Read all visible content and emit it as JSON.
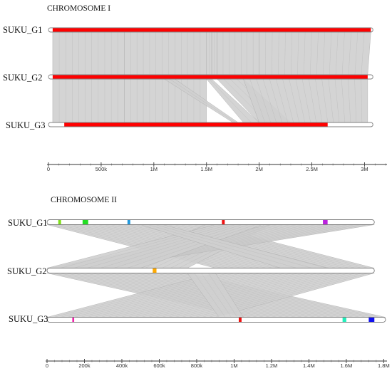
{
  "panels": [
    {
      "title": "CHROMOSOME I",
      "genomes": [
        {
          "label": "SUKU_G1",
          "length": 3.08,
          "regions": [
            {
              "start": 0.04,
              "end": 3.06,
              "color": "#ff0000"
            }
          ]
        },
        {
          "label": "SUKU_G2",
          "length": 3.08,
          "regions": [
            {
              "start": 0.04,
              "end": 3.03,
              "color": "#ff0000"
            }
          ]
        },
        {
          "label": "SUKU_G3",
          "length": 3.08,
          "regions": [
            {
              "start": 0.15,
              "end": 2.65,
              "color": "#ff0000"
            }
          ]
        }
      ],
      "links": [
        [
          [
            0.04,
            0.72,
            0.04,
            0.72
          ],
          [
            0.72,
            1.5,
            0.72,
            1.5
          ],
          [
            1.5,
            1.55,
            1.5,
            1.55
          ],
          [
            1.55,
            1.6,
            1.55,
            1.6
          ],
          [
            1.6,
            2.0,
            1.6,
            2.0
          ],
          [
            2.0,
            3.06,
            2.0,
            3.03
          ]
        ],
        [
          [
            0.04,
            0.72,
            0.04,
            0.72
          ],
          [
            0.72,
            1.5,
            0.72,
            1.5
          ],
          [
            1.5,
            1.55,
            1.85,
            2.0
          ],
          [
            1.6,
            1.85,
            2.0,
            2.3
          ],
          [
            1.85,
            3.03,
            2.0,
            3.03
          ],
          [
            1.1,
            1.2,
            1.75,
            1.8
          ]
        ]
      ],
      "axis": {
        "max": 3.2,
        "ticks": [
          {
            "value": 0,
            "label": "0"
          },
          {
            "value": 0.5,
            "label": "500k"
          },
          {
            "value": 1.0,
            "label": "1M"
          },
          {
            "value": 1.5,
            "label": "1.5M"
          },
          {
            "value": 2.0,
            "label": "2M"
          },
          {
            "value": 2.5,
            "label": "2.5M"
          },
          {
            "value": 3.0,
            "label": "3M"
          }
        ]
      }
    },
    {
      "title": "CHROMOSOME II",
      "genomes": [
        {
          "label": "SUKU_G1",
          "length": 1.75,
          "regions": [
            {
              "start": 0.06,
              "end": 0.075,
              "color": "#7fe01a"
            },
            {
              "start": 0.19,
              "end": 0.22,
              "color": "#22dd22"
            },
            {
              "start": 0.43,
              "end": 0.445,
              "color": "#2299dd"
            },
            {
              "start": 0.935,
              "end": 0.95,
              "color": "#ee1111"
            },
            {
              "start": 1.475,
              "end": 1.5,
              "color": "#bb22dd"
            }
          ]
        },
        {
          "label": "SUKU_G2",
          "length": 1.75,
          "regions": [
            {
              "start": 0.565,
              "end": 0.585,
              "color": "#ffaa00"
            }
          ]
        },
        {
          "label": "SUKU_G3",
          "length": 1.81,
          "regions": [
            {
              "start": 0.135,
              "end": 0.145,
              "color": "#ee22aa"
            },
            {
              "start": 1.025,
              "end": 1.04,
              "color": "#ee1111"
            },
            {
              "start": 1.58,
              "end": 1.6,
              "color": "#22eebb"
            },
            {
              "start": 1.72,
              "end": 1.75,
              "color": "#1111ee"
            }
          ]
        }
      ],
      "links": [
        [
          [
            0.0,
            0.85,
            0.9,
            1.75
          ],
          [
            0.85,
            1.2,
            0.3,
            0.75
          ],
          [
            1.2,
            1.75,
            0.0,
            0.3
          ],
          [
            0.9,
            1.15,
            0.0,
            0.5
          ],
          [
            0.5,
            0.62,
            1.25,
            1.5
          ]
        ],
        [
          [
            0.0,
            0.75,
            1.06,
            1.81
          ],
          [
            0.9,
            1.75,
            0.0,
            0.9
          ],
          [
            0.75,
            0.9,
            0.92,
            1.05
          ]
        ]
      ],
      "axis": {
        "max": 1.81,
        "ticks": [
          {
            "value": 0,
            "label": "0"
          },
          {
            "value": 0.2,
            "label": "200k"
          },
          {
            "value": 0.4,
            "label": "400k"
          },
          {
            "value": 0.6,
            "label": "600k"
          },
          {
            "value": 0.8,
            "label": "800k"
          },
          {
            "value": 1.0,
            "label": "1M"
          },
          {
            "value": 1.2,
            "label": "1.2M"
          },
          {
            "value": 1.4,
            "label": "1.4M"
          },
          {
            "value": 1.6,
            "label": "1.6M"
          },
          {
            "value": 1.8,
            "label": "1.8M"
          }
        ]
      }
    }
  ],
  "colors": {
    "link": "#cfcfcf",
    "link_edge": "#a9a9a9",
    "bar_outline": "#808080"
  }
}
